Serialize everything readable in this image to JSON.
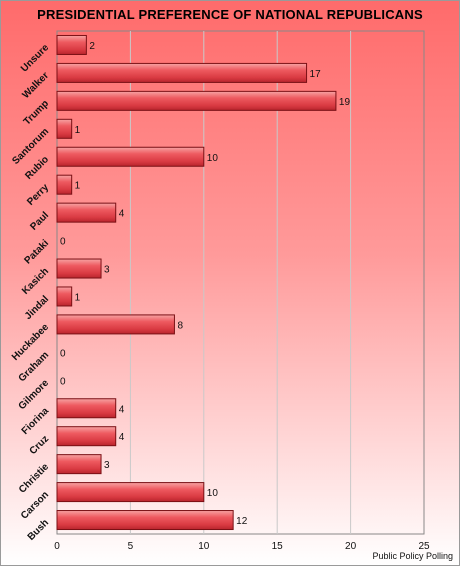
{
  "chart_data": {
    "type": "bar",
    "orientation": "horizontal",
    "title": "PRESIDENTIAL PREFERENCE OF NATIONAL REPUBLICANS",
    "categories": [
      "Unsure",
      "Walker",
      "Trump",
      "Santorum",
      "Rubio",
      "Perry",
      "Paul",
      "Pataki",
      "Kasich",
      "Jindal",
      "Huckabee",
      "Graham",
      "Gilmore",
      "Fiorina",
      "Cruz",
      "Christie",
      "Carson",
      "Bush"
    ],
    "values": [
      2,
      17,
      19,
      1,
      10,
      1,
      4,
      0,
      3,
      1,
      8,
      0,
      0,
      4,
      4,
      3,
      10,
      12
    ],
    "xlim": [
      0,
      25
    ],
    "xticks": [
      0,
      5,
      10,
      15,
      20,
      25
    ],
    "grid": true,
    "bar_color": "#e8434b",
    "source": "Public Policy Polling"
  }
}
